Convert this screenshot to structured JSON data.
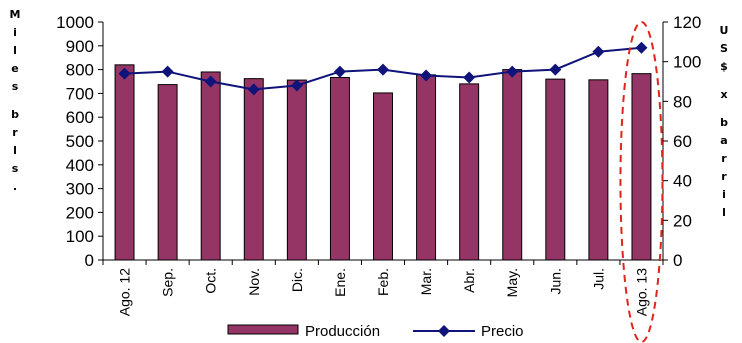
{
  "chart_data": {
    "type": "bar",
    "categories": [
      "Ago. 12",
      "Sep.",
      "Oct.",
      "Nov.",
      "Dic.",
      "Ene.",
      "Feb.",
      "Mar.",
      "Abr.",
      "May.",
      "Jun.",
      "Jul.",
      "Ago. 13"
    ],
    "series": [
      {
        "name": "Producción",
        "type": "bar",
        "axis": "left",
        "color": "#953565",
        "values": [
          820,
          737,
          790,
          762,
          756,
          767,
          702,
          778,
          740,
          800,
          760,
          757,
          783
        ]
      },
      {
        "name": "Precio",
        "type": "line",
        "axis": "right",
        "color": "#0f137a",
        "values": [
          94,
          95,
          90,
          86,
          88,
          95,
          96,
          93,
          92,
          95,
          96,
          105,
          107
        ]
      }
    ],
    "left_axis": {
      "label": "Miles brls.",
      "ylim": [
        0,
        1000
      ],
      "ticks": [
        0,
        100,
        200,
        300,
        400,
        500,
        600,
        700,
        800,
        900,
        1000
      ]
    },
    "right_axis": {
      "label": "US$ x barril",
      "ylim": [
        0,
        120
      ],
      "ticks": [
        0,
        20,
        40,
        60,
        80,
        100,
        120
      ]
    },
    "grid": false,
    "legend": "bottom",
    "highlight": {
      "category": "Ago. 13",
      "style": "red dashed ellipse"
    }
  }
}
